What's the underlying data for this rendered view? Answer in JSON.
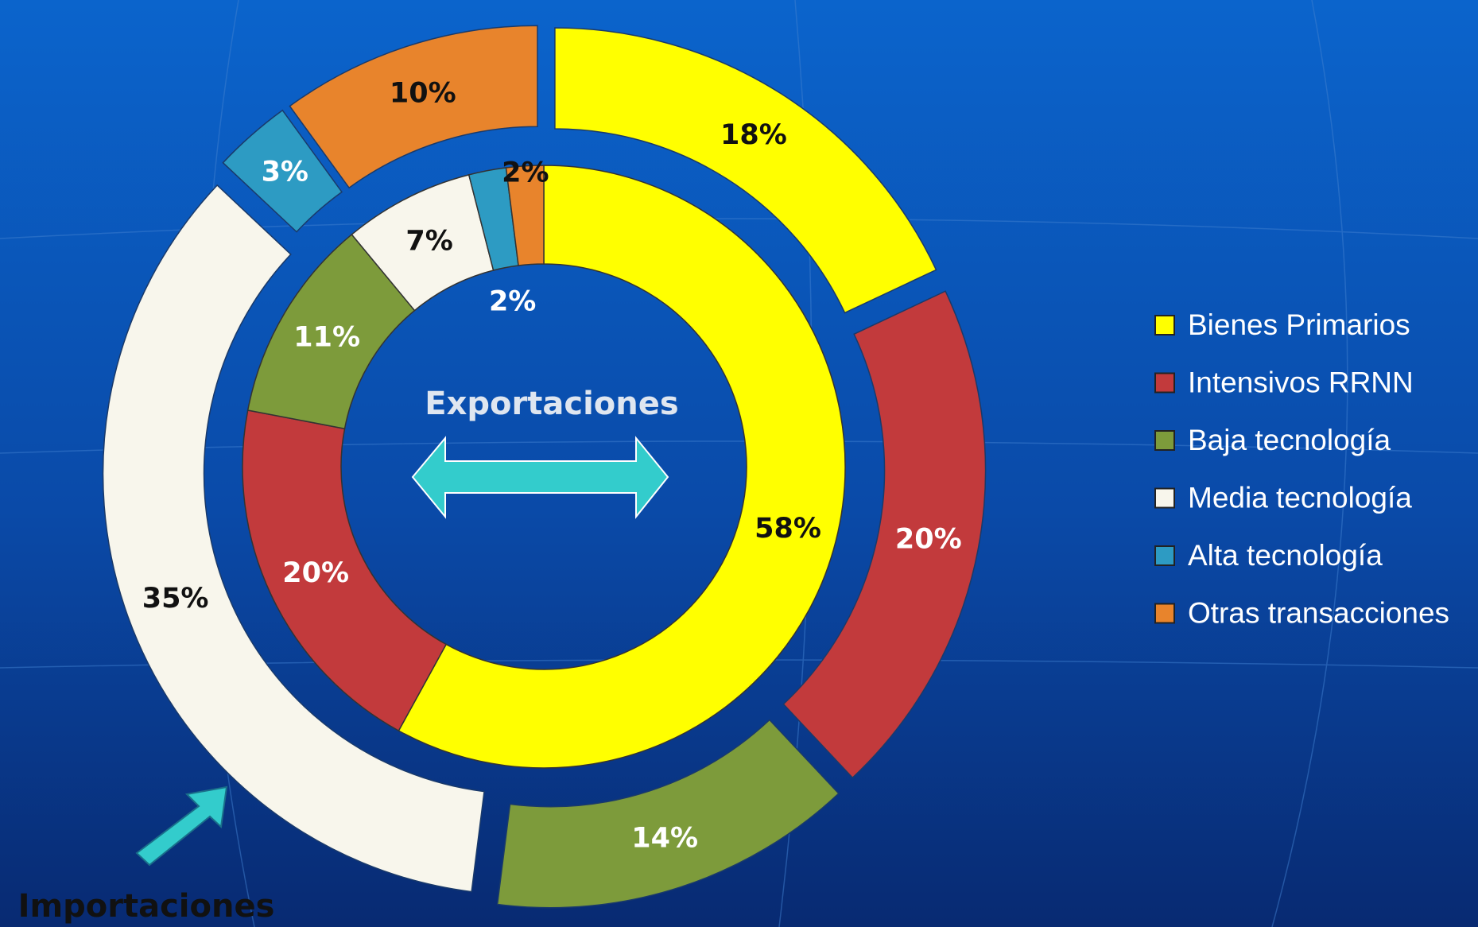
{
  "chart_data": {
    "type": "donut",
    "categories": [
      "Bienes Primarios",
      "Intensivos RRNN",
      "Baja tecnología",
      "Media tecnología",
      "Alta tecnología",
      "Otras transacciones"
    ],
    "colors": [
      "#ffff00",
      "#c23a3c",
      "#7d9b3b",
      "#f8f6ec",
      "#2d9bc3",
      "#e8842c"
    ],
    "series": [
      {
        "name": "Exportaciones",
        "values": [
          58,
          20,
          11,
          7,
          2,
          2
        ],
        "value_labels": [
          "58%",
          "20%",
          "11%",
          "7%",
          "2%",
          "2%"
        ]
      },
      {
        "name": "Importaciones",
        "values": [
          18,
          20,
          14,
          35,
          3,
          10
        ],
        "value_labels": [
          "18%",
          "20%",
          "14%",
          "35%",
          "3%",
          "10%"
        ]
      }
    ],
    "legend": "right"
  }
}
